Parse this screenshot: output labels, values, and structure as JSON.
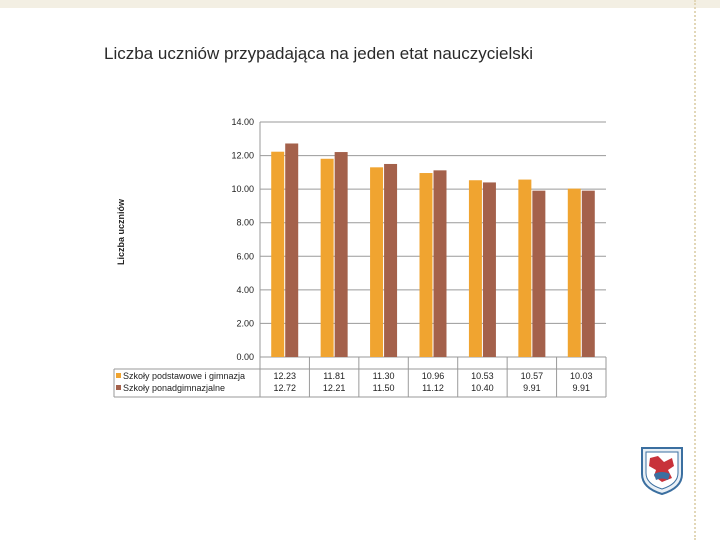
{
  "slide": {
    "title": "Liczba uczniów przypadająca na jeden etat nauczycielski"
  },
  "chart_data": {
    "type": "bar",
    "ylabel": "Liczba uczniów",
    "xlabel": "",
    "ylim": [
      0,
      14
    ],
    "yticks": [
      "0.00",
      "2.00",
      "4.00",
      "6.00",
      "8.00",
      "10.00",
      "12.00",
      "14.00"
    ],
    "grid": true,
    "legend_placement": "bottom-left data table",
    "categories": [
      "",
      "",
      "",
      "",
      "",
      "",
      ""
    ],
    "series": [
      {
        "name": "Szkoły podstawowe i gimnazja",
        "color": "#f0a430",
        "values": [
          12.23,
          11.81,
          11.3,
          10.96,
          10.53,
          10.57,
          10.03
        ],
        "labels": [
          "12.23",
          "11.81",
          "11.30",
          "10.96",
          "10.53",
          "10.57",
          "10.03"
        ]
      },
      {
        "name": "Szkoły ponadgimnazjalne",
        "color": "#a4614b",
        "values": [
          12.72,
          12.21,
          11.5,
          11.12,
          10.4,
          9.91,
          9.91
        ],
        "labels": [
          "12.72",
          "12.21",
          "11.50",
          "11.12",
          "10.40",
          "9.91",
          "9.91"
        ]
      }
    ]
  },
  "logo": {
    "name": "crest-logo"
  }
}
